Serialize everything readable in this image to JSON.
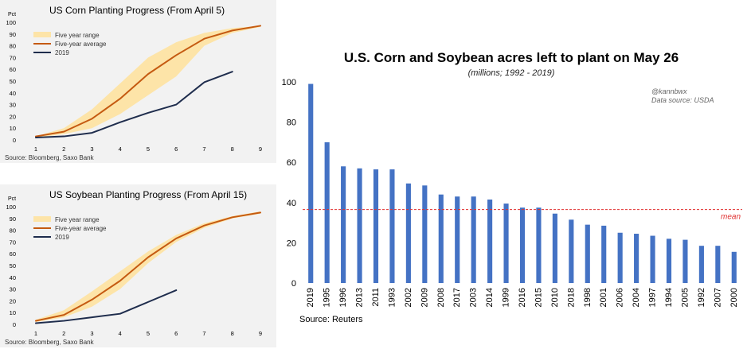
{
  "chart_data": [
    {
      "type": "line",
      "title": "US Corn Planting Progress (From April 5)",
      "ylabel": "Pct",
      "source": "Source: Bloomberg, Saxo Bank",
      "x": [
        1,
        2,
        3,
        4,
        5,
        6,
        7,
        8,
        9
      ],
      "xlim": [
        1,
        9
      ],
      "ylim": [
        0,
        100
      ],
      "yticks": [
        0,
        10,
        20,
        30,
        40,
        50,
        60,
        70,
        80,
        90,
        100
      ],
      "legend_position": "top-left",
      "range": {
        "name": "Five year range",
        "color": "#fde4a8",
        "low": [
          2,
          5,
          10,
          22,
          38,
          54,
          80,
          91,
          96
        ],
        "high": [
          3,
          10,
          26,
          48,
          70,
          83,
          91,
          95,
          97
        ]
      },
      "series": [
        {
          "name": "Five-year average",
          "color": "#c55a11",
          "values": [
            3,
            7,
            18,
            35,
            56,
            72,
            86,
            93,
            97
          ]
        },
        {
          "name": "2019",
          "color": "#1f2d4d",
          "values": [
            2,
            3,
            6,
            15,
            23,
            30,
            49,
            58,
            null
          ]
        }
      ]
    },
    {
      "type": "line",
      "title": "US Soybean Planting Progress (From April 15)",
      "ylabel": "Pct",
      "source": "Source: Bloomberg, Saxo Bank",
      "x": [
        1,
        2,
        3,
        4,
        5,
        6,
        7,
        8,
        9
      ],
      "xlim": [
        1,
        9
      ],
      "ylim": [
        0,
        100
      ],
      "yticks": [
        0,
        10,
        20,
        30,
        40,
        50,
        60,
        70,
        80,
        90,
        100
      ],
      "legend_position": "top-left",
      "range": {
        "name": "Five year range",
        "color": "#fde4a8",
        "low": [
          2,
          6,
          15,
          30,
          52,
          70,
          82,
          90,
          94
        ],
        "high": [
          4,
          12,
          28,
          45,
          62,
          76,
          86,
          92,
          96
        ]
      },
      "series": [
        {
          "name": "Five-year average",
          "color": "#c55a11",
          "values": [
            3,
            8,
            21,
            37,
            57,
            73,
            84,
            91,
            95
          ]
        },
        {
          "name": "2019",
          "color": "#1f2d4d",
          "values": [
            1,
            3,
            6,
            9,
            19,
            29,
            null,
            null,
            null
          ]
        }
      ]
    },
    {
      "type": "bar",
      "title": "U.S. Corn and Soybean acres left to plant on May 26",
      "subtitle": "(millions; 1992 - 2019)",
      "watermark": [
        "@kannbwx",
        "Data source: USDA"
      ],
      "source": "Source: Reuters",
      "bar_color": "#4472c4",
      "categories": [
        "2019",
        "1995",
        "1996",
        "2013",
        "2011",
        "1993",
        "2002",
        "2009",
        "2008",
        "2017",
        "2003",
        "2014",
        "1999",
        "2016",
        "2015",
        "2010",
        "2018",
        "1998",
        "2001",
        "2006",
        "2004",
        "1997",
        "1994",
        "2005",
        "1992",
        "2007",
        "2000"
      ],
      "values": [
        99,
        70,
        58,
        57,
        56.5,
        56.5,
        49.5,
        48.5,
        44,
        43,
        43,
        41.5,
        39.5,
        37.5,
        37.5,
        34.5,
        31.5,
        29,
        28.5,
        25,
        24.5,
        23.5,
        22,
        21.5,
        18.5,
        18.5,
        15.5
      ],
      "ylim": [
        0,
        100
      ],
      "yticks": [
        0,
        20,
        40,
        60,
        80,
        100
      ],
      "mean": {
        "label": "mean",
        "value": 36.5,
        "color": "#e03030"
      }
    }
  ]
}
